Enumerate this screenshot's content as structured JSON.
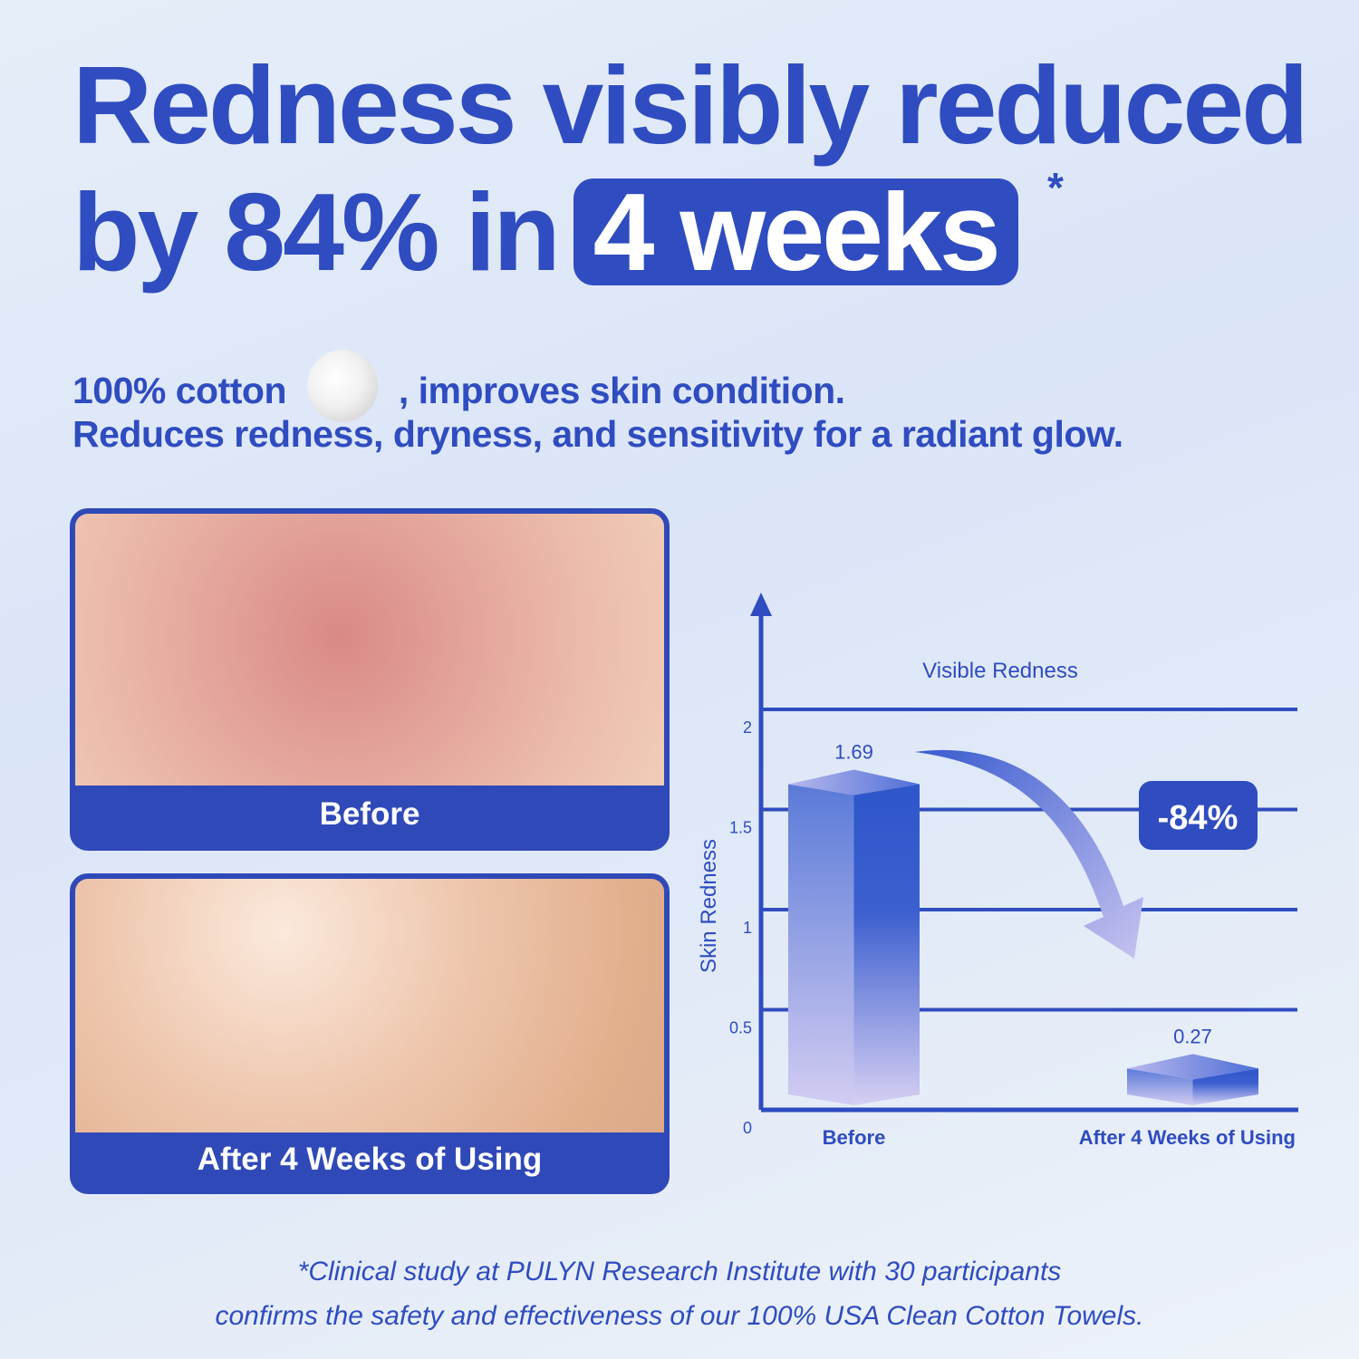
{
  "headline": {
    "line1": "Redness visibly reduced",
    "line2_prefix": "by 84% in",
    "highlight": "4 weeks",
    "asterisk": "*"
  },
  "subheading": {
    "line1_a": "100% cotton",
    "line1_b": ", improves skin condition.",
    "line2": "Reduces redness, dryness, and sensitivity for a radiant glow.",
    "cotton_icon": "cotton-boll-icon"
  },
  "photos": [
    {
      "caption": "Before"
    },
    {
      "caption": "After 4 Weeks of Using"
    }
  ],
  "colors": {
    "brand": "#2f4cc0",
    "bar_top": "#3357cc",
    "bar_bottom": "#d6cdf3"
  },
  "chart_data": {
    "type": "bar",
    "title": "Visible Redness",
    "ylabel": "Skin Redness",
    "xlabel": "",
    "categories": [
      "Before",
      "After 4 Weeks of Using"
    ],
    "values": [
      1.69,
      0.27
    ],
    "data_labels": [
      "1.69",
      "0.27"
    ],
    "yticks": [
      "0",
      "0.5",
      "1",
      "1.5",
      "2"
    ],
    "ylim": [
      0,
      2.3
    ],
    "grid": true,
    "annotation": "-84%"
  },
  "footnote": {
    "line1": "*Clinical study at PULYN Research Institute with 30 participants",
    "line2": "confirms the safety and effectiveness of our 100% USA Clean Cotton Towels."
  }
}
